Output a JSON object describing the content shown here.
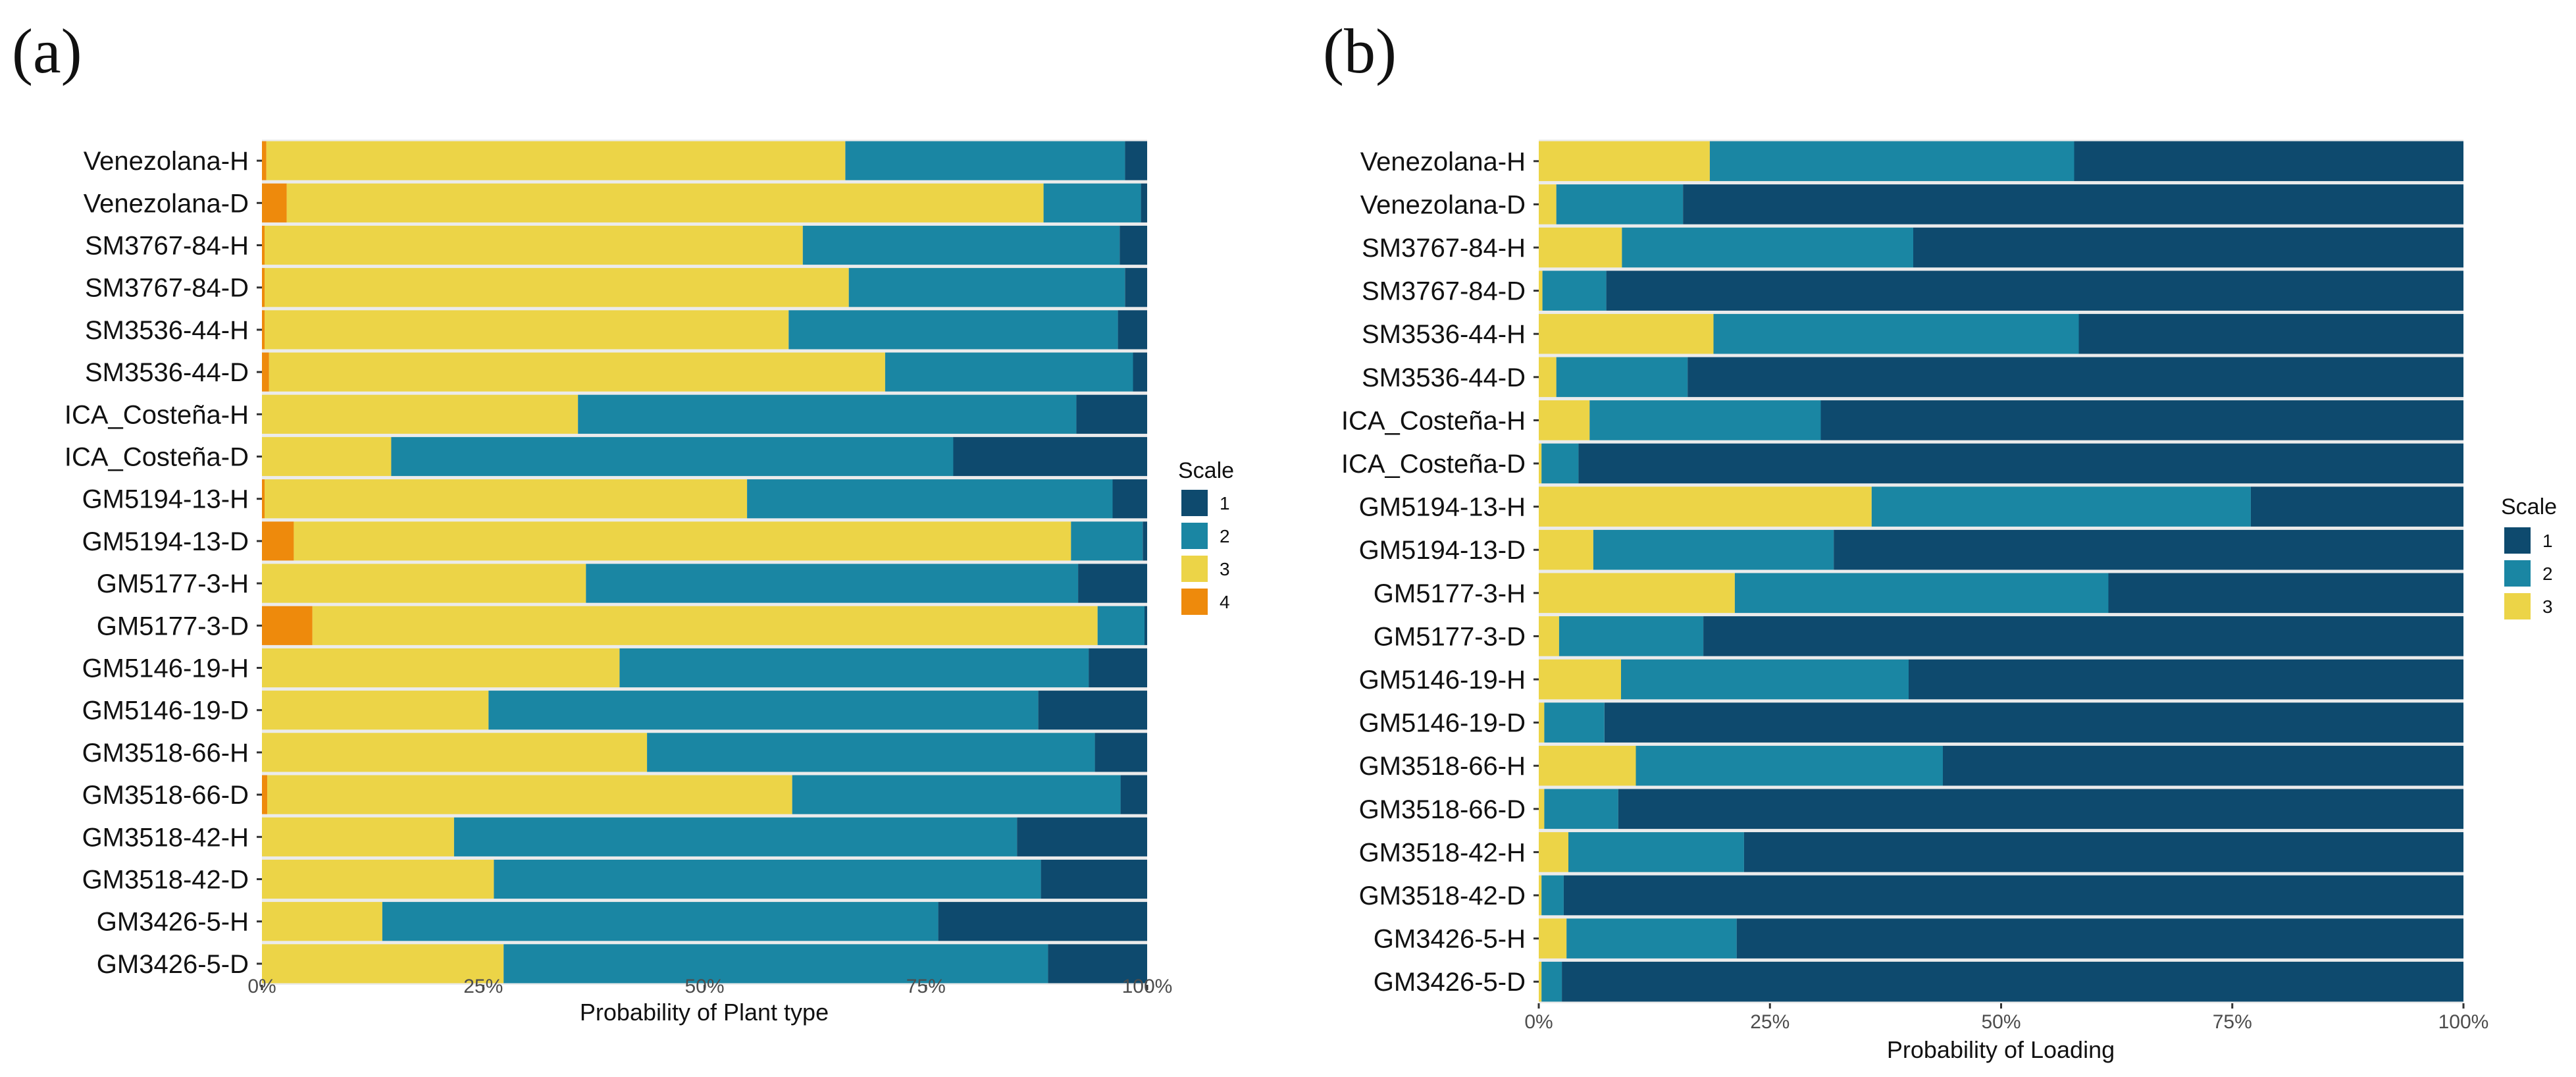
{
  "colors": {
    "1": "#0e4a6e",
    "2": "#1a86a3",
    "3": "#ecd447",
    "4": "#ee8a0c",
    "panel_bg": "#ebebeb",
    "gap": "#ffffff"
  },
  "chart_data": [
    {
      "type": "bar",
      "orientation": "horizontal",
      "stacked": true,
      "panel_label": "(a)",
      "title": "",
      "xlabel": "Probability of Plant type",
      "ylabel": "",
      "xlim": [
        0,
        100
      ],
      "xticks": [
        "0%",
        "25%",
        "50%",
        "75%",
        "100%"
      ],
      "legend": {
        "title": "Scale",
        "entries": [
          "1",
          "2",
          "3",
          "4"
        ],
        "placement": "right"
      },
      "categories": [
        "Venezolana-H",
        "Venezolana-D",
        "SM3767-84-H",
        "SM3767-84-D",
        "SM3536-44-H",
        "SM3536-44-D",
        "ICA_Costeña-H",
        "ICA_Costeña-D",
        "GM5194-13-H",
        "GM5194-13-D",
        "GM5177-3-H",
        "GM5177-3-D",
        "GM5146-19-H",
        "GM5146-19-D",
        "GM3518-66-H",
        "GM3518-66-D",
        "GM3518-42-H",
        "GM3518-42-D",
        "GM3426-5-H",
        "GM3426-5-D"
      ],
      "stack_order": [
        "4",
        "3",
        "2",
        "1"
      ],
      "series": [
        {
          "name": "4",
          "values": [
            0.5,
            2.8,
            0.3,
            0.3,
            0.3,
            0.8,
            0.0,
            0.0,
            0.3,
            3.6,
            0.0,
            5.7,
            0.0,
            0.0,
            0.0,
            0.6,
            0.0,
            0.0,
            0.0,
            0.0
          ]
        },
        {
          "name": "3",
          "values": [
            65.4,
            85.5,
            60.8,
            66.0,
            59.2,
            69.6,
            35.7,
            14.6,
            54.5,
            87.8,
            36.6,
            88.7,
            40.4,
            25.6,
            43.5,
            59.3,
            21.7,
            26.2,
            13.6,
            27.3
          ]
        },
        {
          "name": "2",
          "values": [
            31.6,
            11.0,
            35.8,
            31.2,
            37.2,
            28.0,
            56.3,
            63.5,
            41.3,
            8.1,
            55.6,
            5.3,
            53.0,
            62.1,
            50.6,
            37.1,
            63.6,
            61.8,
            62.8,
            61.5
          ]
        },
        {
          "name": "1",
          "values": [
            2.5,
            0.7,
            3.1,
            2.5,
            3.3,
            1.6,
            8.0,
            21.9,
            3.9,
            0.5,
            7.8,
            0.3,
            6.6,
            12.3,
            5.9,
            3.0,
            14.7,
            12.0,
            23.6,
            11.2
          ]
        }
      ]
    },
    {
      "type": "bar",
      "orientation": "horizontal",
      "stacked": true,
      "panel_label": "(b)",
      "title": "",
      "xlabel": "Probability of Loading",
      "ylabel": "",
      "xlim": [
        0,
        100
      ],
      "xticks": [
        "0%",
        "25%",
        "50%",
        "75%",
        "100%"
      ],
      "legend": {
        "title": "Scale",
        "entries": [
          "1",
          "2",
          "3"
        ],
        "placement": "right"
      },
      "categories": [
        "Venezolana-H",
        "Venezolana-D",
        "SM3767-84-H",
        "SM3767-84-D",
        "SM3536-44-H",
        "SM3536-44-D",
        "ICA_Costeña-H",
        "ICA_Costeña-D",
        "GM5194-13-H",
        "GM5194-13-D",
        "GM5177-3-H",
        "GM5177-3-D",
        "GM5146-19-H",
        "GM5146-19-D",
        "GM3518-66-H",
        "GM3518-66-D",
        "GM3518-42-H",
        "GM3518-42-D",
        "GM3426-5-H",
        "GM3426-5-D"
      ],
      "stack_order": [
        "3",
        "2",
        "1"
      ],
      "series": [
        {
          "name": "3",
          "values": [
            18.5,
            1.9,
            9.0,
            0.4,
            18.9,
            1.9,
            5.5,
            0.3,
            36.0,
            5.9,
            21.2,
            2.2,
            8.9,
            0.6,
            10.5,
            0.6,
            3.2,
            0.3,
            3.0,
            0.3
          ]
        },
        {
          "name": "2",
          "values": [
            39.4,
            13.7,
            31.5,
            6.9,
            39.5,
            14.2,
            25.0,
            4.0,
            41.0,
            26.0,
            40.4,
            15.6,
            31.1,
            6.5,
            33.2,
            8.0,
            19.0,
            2.4,
            18.4,
            2.2
          ]
        },
        {
          "name": "1",
          "values": [
            42.1,
            84.4,
            59.5,
            92.7,
            41.6,
            83.9,
            69.5,
            95.7,
            23.0,
            68.1,
            38.4,
            82.2,
            60.0,
            92.9,
            56.3,
            91.4,
            77.8,
            97.3,
            78.6,
            97.5
          ]
        }
      ]
    }
  ]
}
